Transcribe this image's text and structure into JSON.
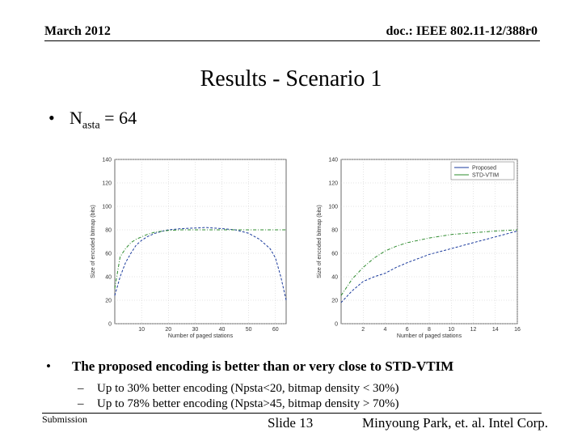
{
  "header": {
    "date": "March 2012",
    "doc": "doc.: IEEE 802.11-12/388r0"
  },
  "title": "Results - Scenario 1",
  "bullet1": {
    "dot": "•",
    "label_main": "N",
    "label_sub": "asta",
    "label_rest": " = 64"
  },
  "bullet2": {
    "dot": "•",
    "text": "The proposed encoding is better than or very close to STD-VTIM"
  },
  "sub_bullets": [
    {
      "dash": "–",
      "text": "Up to 30% better encoding (Npsta<20, bitmap density < 30%)"
    },
    {
      "dash": "–",
      "text": "Up to 78% better encoding (Npsta>45, bitmap density > 70%)"
    }
  ],
  "footer": {
    "left": "Submission",
    "middle": "Slide 13",
    "right": "Minyoung Park, et. al. Intel Corp."
  },
  "colors": {
    "proposed": "#1a3a9c",
    "std_vtim": "#2e8b2e"
  },
  "chart_data": [
    {
      "type": "line",
      "xlabel": "Number of paged stations",
      "ylabel": "Size of encoded bitmap (bits)",
      "xlim": [
        0,
        64
      ],
      "ylim": [
        0,
        140
      ],
      "xticks": [
        10,
        20,
        30,
        40,
        50,
        60
      ],
      "yticks": [
        0,
        20,
        40,
        60,
        80,
        100,
        120,
        140
      ],
      "grid": true,
      "series": [
        {
          "key": "proposed",
          "style": "dashed",
          "points": [
            [
              0,
              24
            ],
            [
              2,
              40
            ],
            [
              4,
              52
            ],
            [
              6,
              60
            ],
            [
              8,
              67
            ],
            [
              10,
              71
            ],
            [
              12,
              74
            ],
            [
              15,
              77
            ],
            [
              18,
              79
            ],
            [
              20,
              80
            ],
            [
              25,
              81
            ],
            [
              30,
              81.5
            ],
            [
              34,
              82
            ],
            [
              40,
              81
            ],
            [
              45,
              80
            ],
            [
              50,
              77
            ],
            [
              54,
              72
            ],
            [
              58,
              64
            ],
            [
              60,
              56
            ],
            [
              62,
              40
            ],
            [
              64,
              20
            ]
          ]
        },
        {
          "key": "std_vtim",
          "style": "dashdot",
          "points": [
            [
              0,
              30
            ],
            [
              2,
              57
            ],
            [
              4,
              64
            ],
            [
              6,
              69
            ],
            [
              8,
              72
            ],
            [
              10,
              74
            ],
            [
              12,
              76
            ],
            [
              15,
              78
            ],
            [
              20,
              79.5
            ],
            [
              25,
              80
            ],
            [
              30,
              80
            ],
            [
              64,
              80
            ]
          ]
        }
      ]
    },
    {
      "type": "line",
      "xlabel": "Number of paged stations",
      "ylabel": "Size of encoded bitmap (bits)",
      "xlim": [
        0,
        16
      ],
      "ylim": [
        0,
        140
      ],
      "xticks": [
        2,
        4,
        6,
        8,
        10,
        12,
        14,
        16
      ],
      "yticks": [
        0,
        20,
        40,
        60,
        80,
        100,
        120,
        140
      ],
      "grid": true,
      "legend": {
        "position": "top-right",
        "entries": [
          {
            "key": "proposed",
            "label": "Proposed"
          },
          {
            "key": "std_vtim",
            "label": "STD-VTIM"
          }
        ]
      },
      "series": [
        {
          "key": "proposed",
          "style": "dashed",
          "points": [
            [
              0,
              18
            ],
            [
              1,
              28
            ],
            [
              2,
              36
            ],
            [
              3,
              40
            ],
            [
              4,
              43
            ],
            [
              5,
              48
            ],
            [
              6,
              52
            ],
            [
              8,
              59
            ],
            [
              10,
              64
            ],
            [
              12,
              69
            ],
            [
              14,
              74
            ],
            [
              16,
              79
            ]
          ]
        },
        {
          "key": "std_vtim",
          "style": "dashdot",
          "points": [
            [
              0,
              24
            ],
            [
              1,
              38
            ],
            [
              2,
              48
            ],
            [
              3,
              56
            ],
            [
              4,
              62
            ],
            [
              5,
              66
            ],
            [
              6,
              69
            ],
            [
              8,
              73
            ],
            [
              10,
              76
            ],
            [
              12,
              77.5
            ],
            [
              14,
              79
            ],
            [
              16,
              80
            ]
          ]
        }
      ]
    }
  ]
}
